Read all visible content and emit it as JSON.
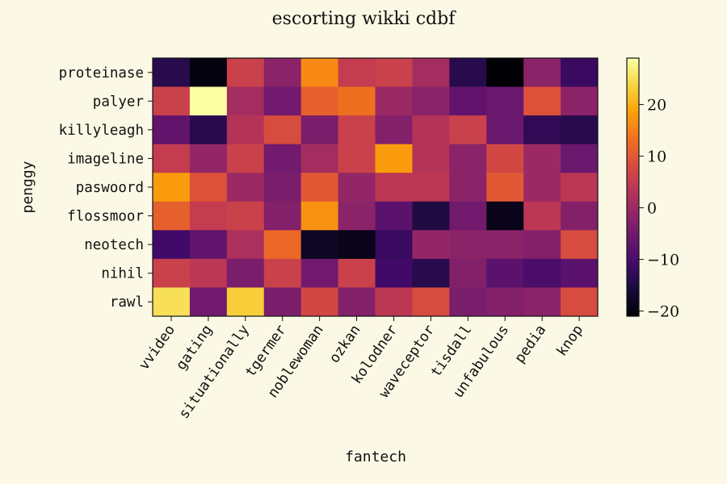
{
  "chart_data": {
    "type": "heatmap",
    "title": "escorting wikki cdbf",
    "xlabel": "fantech",
    "ylabel": "penggy",
    "x_categories": [
      "vvideo",
      "gating",
      "situationally",
      "tgermer",
      "noblewoman",
      "ozkan",
      "kolodner",
      "waveceptor",
      "tisdall",
      "unfabulous",
      "pedia",
      "knop"
    ],
    "y_categories": [
      "proteinase",
      "palyer",
      "killyleagh",
      "imageline",
      "paswoord",
      "flossmoor",
      "neotech",
      "nihil",
      "rawl"
    ],
    "values": [
      [
        -14,
        -20,
        6,
        -2,
        16,
        5,
        6,
        1,
        -14,
        -21,
        -2,
        -12
      ],
      [
        6,
        29,
        1,
        -5,
        11,
        13,
        0,
        -2,
        -7,
        -6,
        9,
        -2
      ],
      [
        -7,
        -14,
        3,
        8,
        -4,
        6,
        -3,
        3,
        6,
        -6,
        -13,
        -14
      ],
      [
        5,
        -1,
        6,
        -5,
        1,
        6,
        18,
        3,
        -2,
        7,
        0,
        -6
      ],
      [
        18,
        9,
        0,
        -4,
        10,
        -1,
        4,
        4,
        -2,
        10,
        0,
        4
      ],
      [
        11,
        5,
        6,
        -3,
        17,
        -2,
        -8,
        -15,
        -5,
        -19,
        4,
        -3
      ],
      [
        -11,
        -7,
        2,
        12,
        -18,
        -19,
        -12,
        -1,
        -2,
        -2,
        -3,
        8
      ],
      [
        6,
        4,
        -4,
        6,
        -5,
        6,
        -11,
        -14,
        -3,
        -8,
        -10,
        -8
      ],
      [
        25,
        -5,
        23,
        -4,
        7,
        -3,
        4,
        8,
        -4,
        -3,
        -2,
        8
      ]
    ],
    "colormap": "inferno",
    "colorbar": {
      "min": -21,
      "max": 29,
      "ticks": [
        -20,
        -10,
        0,
        10,
        20
      ]
    },
    "colors": {
      "background": "#fbf9e5"
    }
  }
}
